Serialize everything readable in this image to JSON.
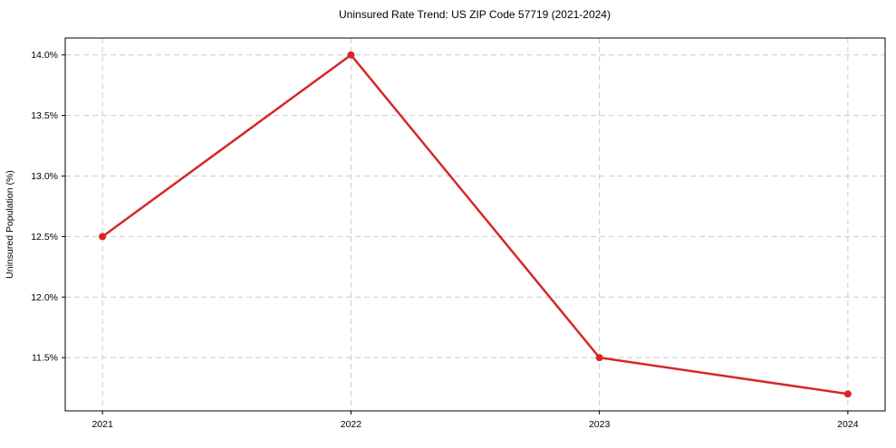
{
  "title": "Uninsured Rate Trend: US ZIP Code 57719 (2021-2024)",
  "chart_data": {
    "type": "line",
    "title": "Uninsured Rate Trend: US ZIP Code 57719 (2021-2024)",
    "xlabel": "",
    "ylabel": "Uninsured Population (%)",
    "x": [
      2021,
      2022,
      2023,
      2024
    ],
    "values": [
      12.5,
      14.0,
      11.5,
      11.2
    ],
    "xticks": [
      2021,
      2022,
      2023,
      2024
    ],
    "xtick_labels": [
      "2021",
      "2022",
      "2023",
      "2024"
    ],
    "yticks": [
      11.5,
      12.0,
      12.5,
      13.0,
      13.5,
      14.0
    ],
    "ytick_labels": [
      "11.5%",
      "12.0%",
      "12.5%",
      "13.0%",
      "13.5%",
      "14.0%"
    ],
    "xlim": [
      2020.85,
      2024.15
    ],
    "ylim": [
      11.06,
      14.14
    ],
    "grid": true,
    "grid_style": "dashed",
    "legend_position": "none",
    "colors": {
      "line": "#d62728",
      "marker": "#d62728",
      "grid": "#cccccc",
      "spine": "#000000",
      "text": "#000000",
      "background": "#ffffff"
    }
  }
}
